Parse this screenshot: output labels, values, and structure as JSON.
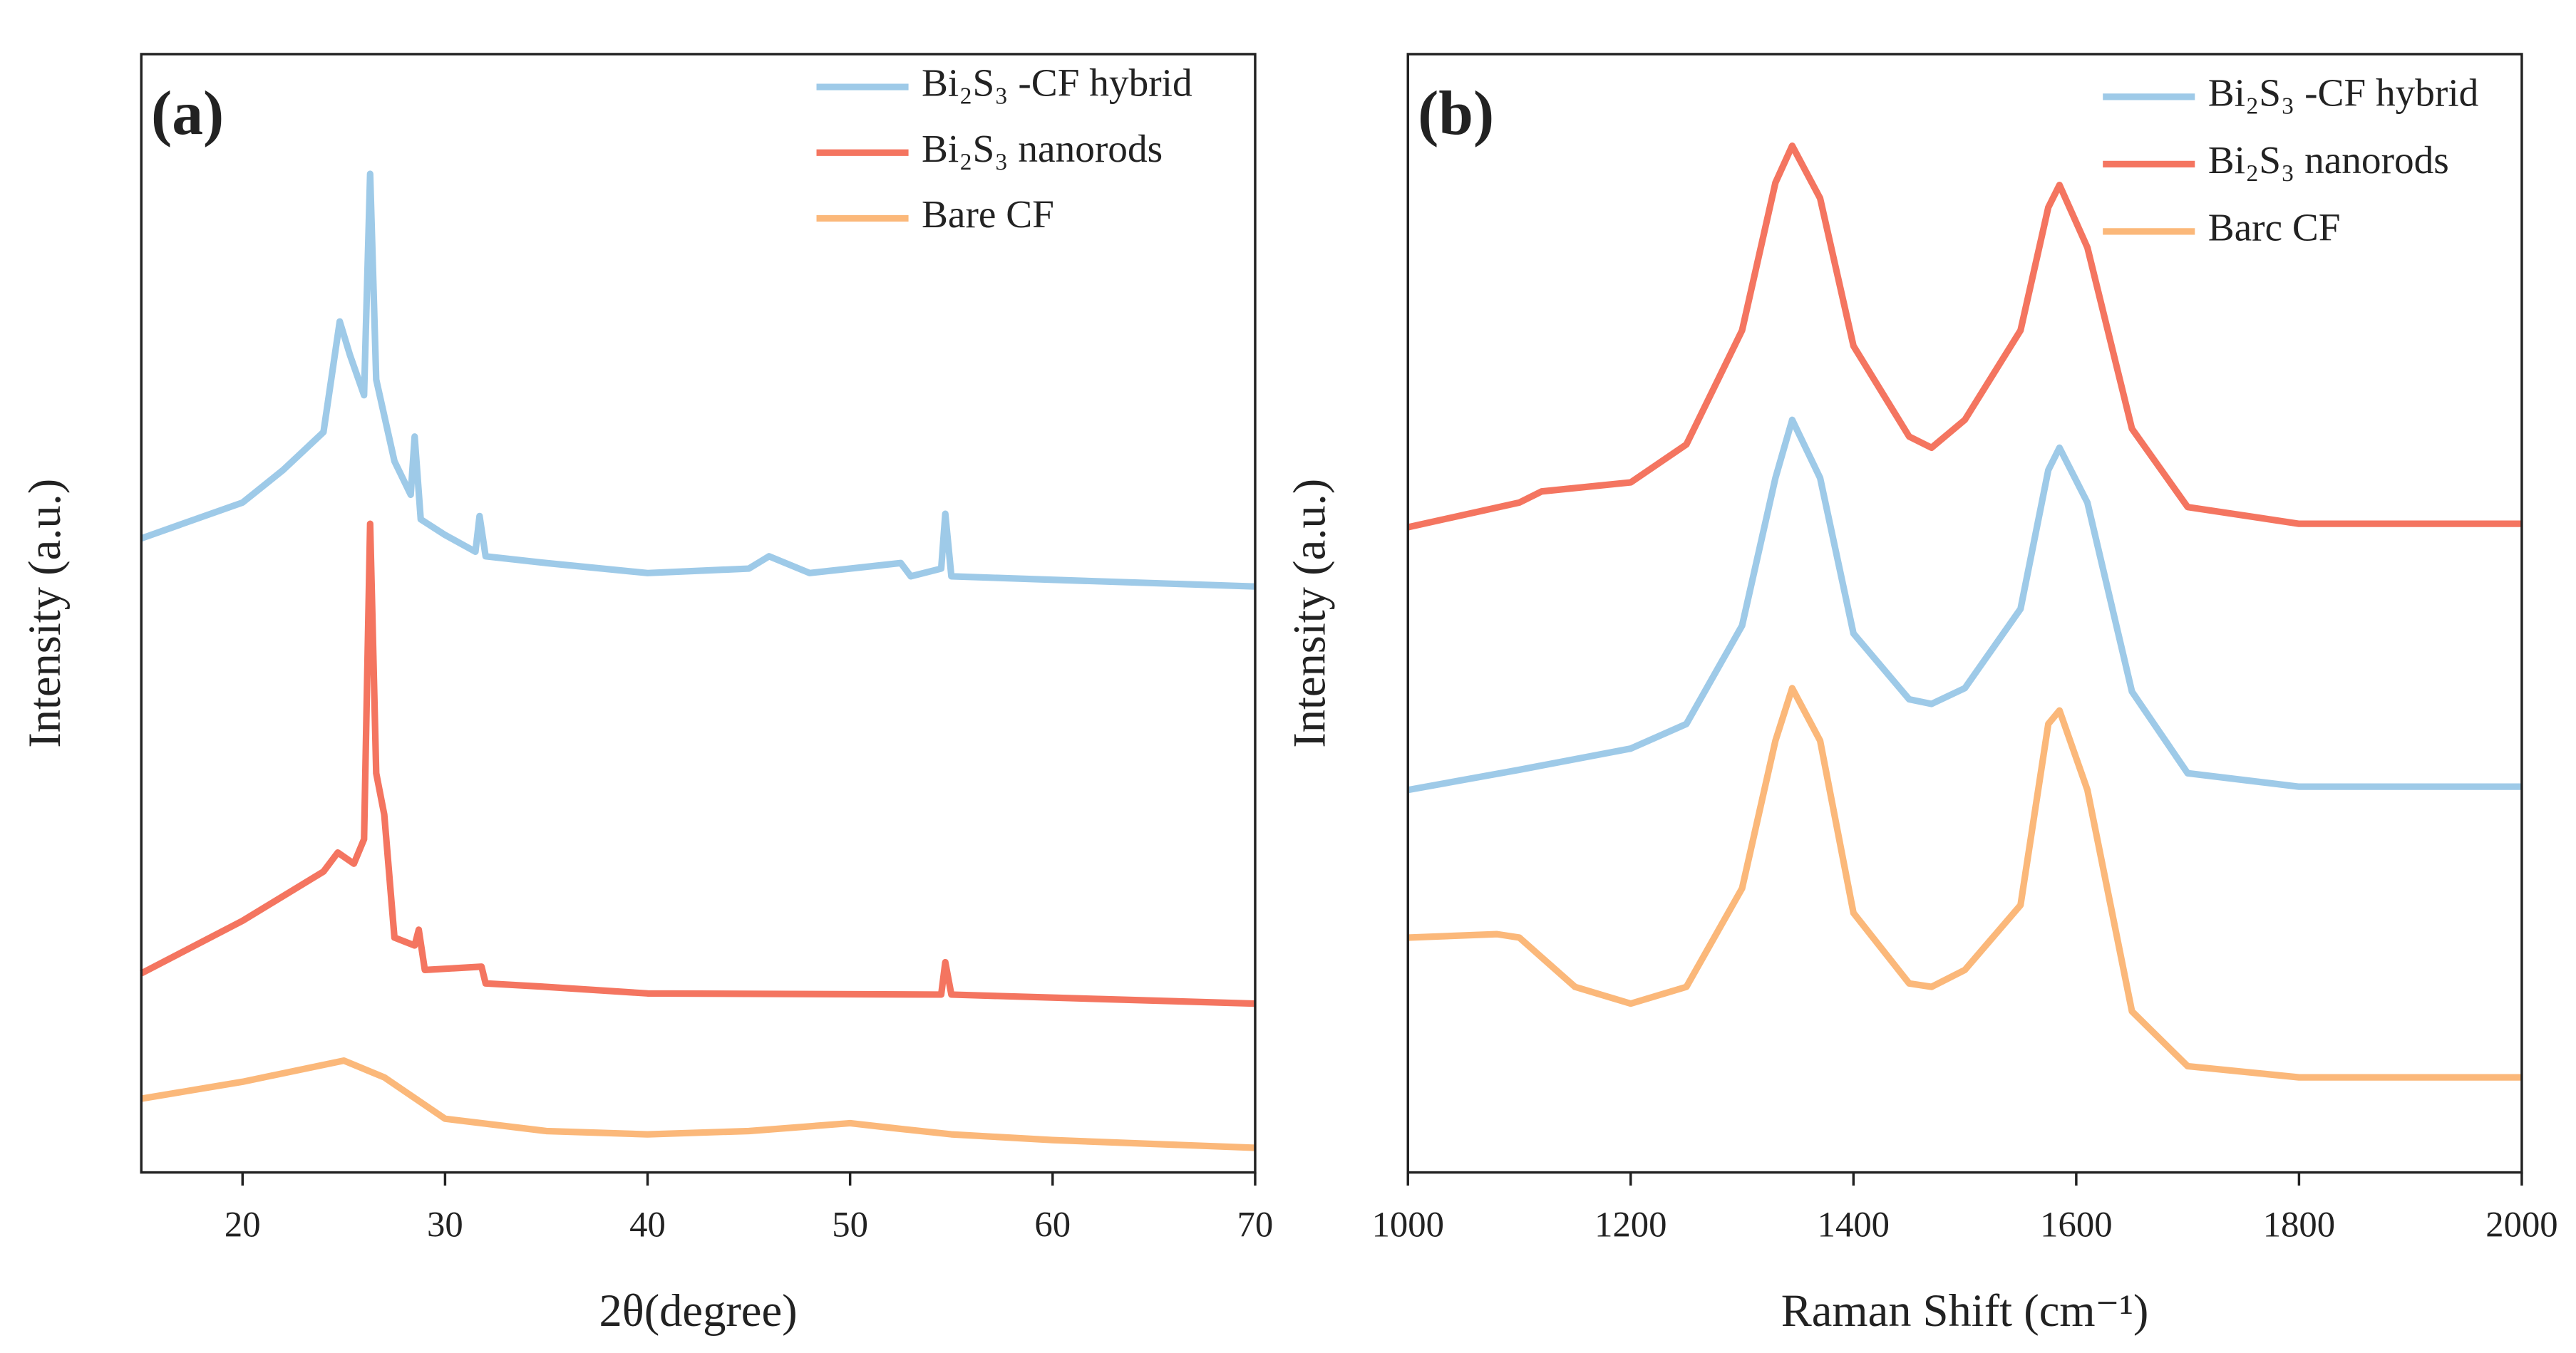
{
  "chart_data": [
    {
      "type": "line",
      "title": "(a)",
      "x_label": "2θ(degree)",
      "y_label": "Intensity (a.u.)",
      "xlim": [
        15,
        70
      ],
      "xticks": [
        20,
        30,
        40,
        50,
        60,
        70
      ],
      "ylim": [
        0,
        100
      ],
      "series": [
        {
          "name": "Bi₂S₃ -CF hybrid",
          "color": "#9ecae8",
          "x": [
            15,
            20,
            22,
            24,
            24.8,
            25.3,
            26.0,
            26.3,
            26.6,
            27.5,
            28.3,
            28.5,
            28.8,
            30,
            31.5,
            31.7,
            32,
            35,
            40,
            45,
            46,
            48,
            52.5,
            53,
            54.5,
            54.7,
            55,
            60,
            70
          ],
          "values": [
            56.7,
            59.9,
            62.8,
            66.2,
            76.1,
            73.1,
            69.5,
            89.3,
            70.9,
            63.6,
            60.6,
            65.8,
            58.4,
            57.0,
            55.5,
            58.7,
            55.1,
            54.5,
            53.6,
            54.0,
            55.1,
            53.6,
            54.5,
            53.3,
            54.0,
            58.9,
            53.3,
            53.0,
            52.4
          ]
        },
        {
          "name": "Bi₂S₃ nanorods",
          "color": "#f47560",
          "x": [
            15,
            20,
            24,
            24.7,
            25.5,
            26.0,
            26.3,
            26.6,
            27,
            27.5,
            28.5,
            28.7,
            29,
            31.8,
            32,
            35,
            40,
            54.5,
            54.7,
            55,
            70
          ],
          "values": [
            17.8,
            22.5,
            26.9,
            28.6,
            27.6,
            29.8,
            58.0,
            35.7,
            32.0,
            21.0,
            20.3,
            21.7,
            18.1,
            18.4,
            16.9,
            16.6,
            16.0,
            15.9,
            18.8,
            15.9,
            15.1
          ]
        },
        {
          "name": "Bare CF",
          "color": "#fbb87a",
          "x": [
            15,
            20,
            25,
            27,
            30,
            35,
            40,
            45,
            50,
            52,
            55,
            60,
            70
          ],
          "values": [
            6.6,
            8.1,
            10.0,
            8.5,
            4.8,
            3.7,
            3.4,
            3.7,
            4.4,
            4.0,
            3.4,
            2.9,
            2.2
          ]
        }
      ]
    },
    {
      "type": "line",
      "title": "(b)",
      "x_label": "Raman Shift (cm⁻¹)",
      "y_label": "Intensity (a.u.)",
      "xlim": [
        1000,
        2000
      ],
      "xticks": [
        1000,
        1200,
        1400,
        1600,
        1800,
        2000
      ],
      "ylim": [
        0,
        100
      ],
      "series": [
        {
          "name": "Bi₂S₃ -CF hybrid",
          "color": "#9ecae8",
          "x": [
            1000,
            1100,
            1200,
            1250,
            1300,
            1330,
            1345,
            1370,
            1400,
            1450,
            1470,
            1500,
            1550,
            1575,
            1585,
            1610,
            1650,
            1700,
            1800,
            2000
          ],
          "values": [
            34.2,
            36.0,
            37.9,
            40.1,
            48.9,
            62.1,
            67.3,
            62.1,
            48.2,
            42.3,
            41.9,
            43.3,
            50.4,
            62.8,
            64.8,
            59.9,
            43.0,
            35.7,
            34.5,
            34.5
          ]
        },
        {
          "name": "Bi₂S₃ nanorods",
          "color": "#f47560",
          "x": [
            1000,
            1100,
            1120,
            1200,
            1250,
            1300,
            1330,
            1345,
            1370,
            1400,
            1450,
            1470,
            1500,
            1550,
            1575,
            1585,
            1610,
            1650,
            1700,
            1800,
            2000
          ],
          "values": [
            57.7,
            59.9,
            60.9,
            61.7,
            65.1,
            75.3,
            88.5,
            91.8,
            87.1,
            73.9,
            65.8,
            64.8,
            67.3,
            75.3,
            86.3,
            88.3,
            82.7,
            66.5,
            59.5,
            58.0,
            58.0
          ]
        },
        {
          "name": "Barc CF",
          "color": "#fbb87a",
          "x": [
            1000,
            1080,
            1100,
            1150,
            1200,
            1250,
            1300,
            1330,
            1345,
            1370,
            1400,
            1450,
            1470,
            1500,
            1550,
            1575,
            1585,
            1610,
            1650,
            1700,
            1800,
            2000
          ],
          "values": [
            21.0,
            21.3,
            21.0,
            16.6,
            15.1,
            16.6,
            25.4,
            38.6,
            43.3,
            38.6,
            23.2,
            16.9,
            16.6,
            18.1,
            23.9,
            40.1,
            41.3,
            34.2,
            14.4,
            9.5,
            8.5,
            8.5
          ]
        }
      ]
    }
  ]
}
